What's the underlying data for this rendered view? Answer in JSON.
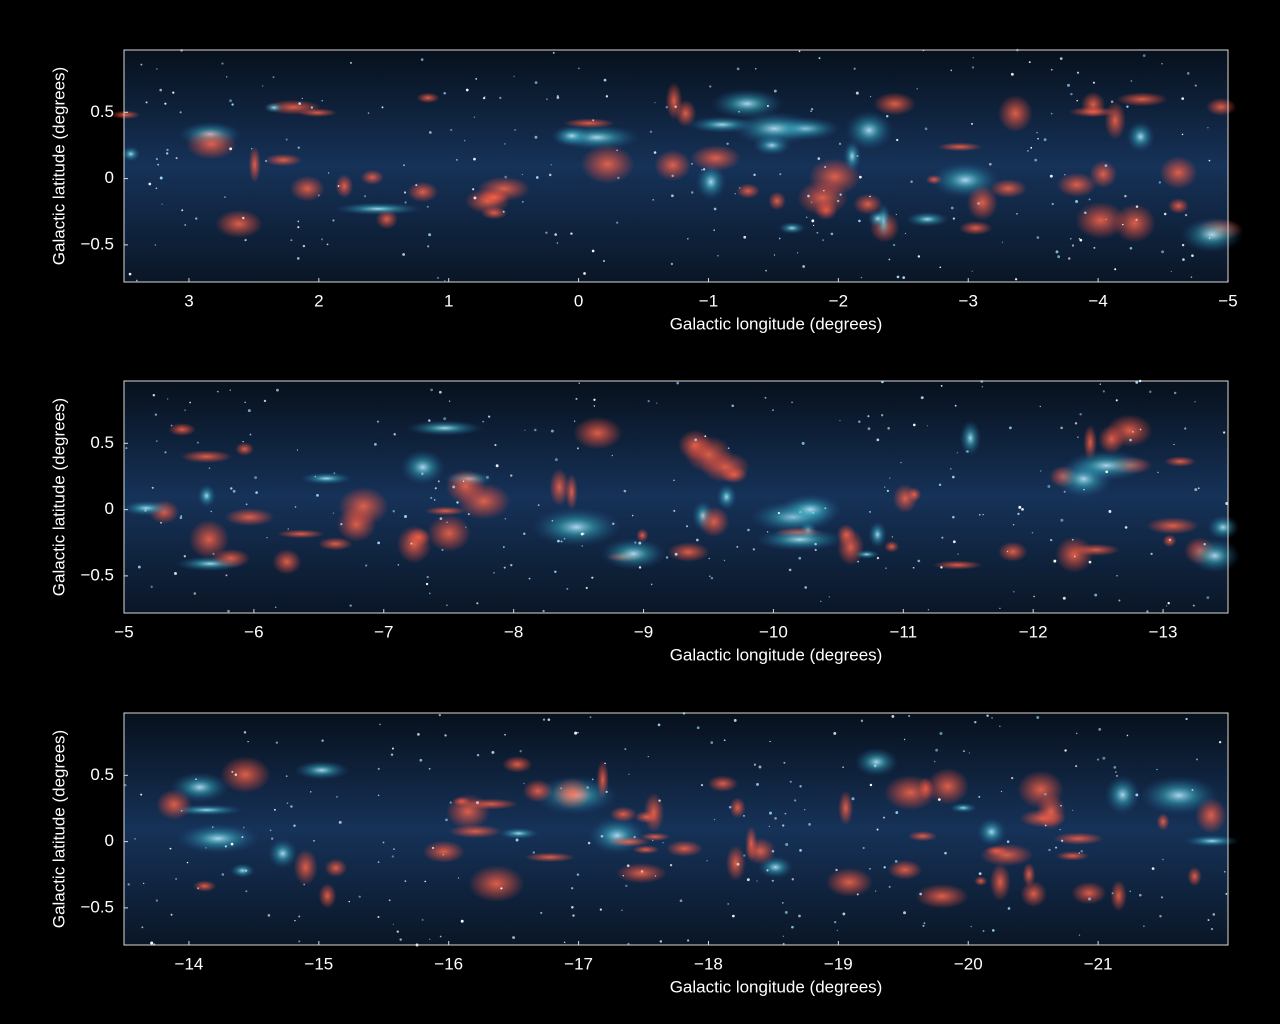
{
  "chart_data": [
    {
      "type": "image",
      "x_label": "Galactic longitude (degrees)",
      "y_label": "Galactic latitude (degrees)",
      "xlim": [
        3.5,
        -5
      ],
      "ylim": [
        -0.78,
        0.97
      ],
      "xticks": [
        3,
        2,
        1,
        0,
        {
          "value": -1,
          "label": "−1"
        },
        {
          "value": -2,
          "label": "−2"
        },
        {
          "value": -3,
          "label": "−3"
        },
        {
          "value": -4,
          "label": "−4"
        },
        {
          "value": -5,
          "label": "−5"
        }
      ],
      "yticks": [
        {
          "value": -0.5,
          "label": "−0.5"
        },
        0,
        0.5
      ]
    },
    {
      "type": "image",
      "x_label": "Galactic longitude (degrees)",
      "y_label": "Galactic latitude (degrees)",
      "xlim": [
        -5,
        -13.5
      ],
      "ylim": [
        -0.78,
        0.97
      ],
      "xticks": [
        {
          "value": -5,
          "label": "−5"
        },
        {
          "value": -6,
          "label": "−6"
        },
        {
          "value": -7,
          "label": "−7"
        },
        {
          "value": -8,
          "label": "−8"
        },
        {
          "value": -9,
          "label": "−9"
        },
        {
          "value": -10,
          "label": "−10"
        },
        {
          "value": -11,
          "label": "−11"
        },
        {
          "value": -12,
          "label": "−12"
        },
        {
          "value": -13,
          "label": "−13"
        }
      ],
      "yticks": [
        {
          "value": -0.5,
          "label": "−0.5"
        },
        0,
        0.5
      ]
    },
    {
      "type": "image",
      "x_label": "Galactic longitude (degrees)",
      "y_label": "Galactic latitude (degrees)",
      "xlim": [
        -13.5,
        -22
      ],
      "ylim": [
        -0.78,
        0.97
      ],
      "xticks": [
        {
          "value": -14,
          "label": "−14"
        },
        {
          "value": -15,
          "label": "−15"
        },
        {
          "value": -16,
          "label": "−16"
        },
        {
          "value": -17,
          "label": "−17"
        },
        {
          "value": -18,
          "label": "−18"
        },
        {
          "value": -19,
          "label": "−19"
        },
        {
          "value": -20,
          "label": "−20"
        },
        {
          "value": -21,
          "label": "−21"
        }
      ],
      "yticks": [
        {
          "value": -0.5,
          "label": "−0.5"
        },
        0,
        0.5
      ]
    }
  ]
}
